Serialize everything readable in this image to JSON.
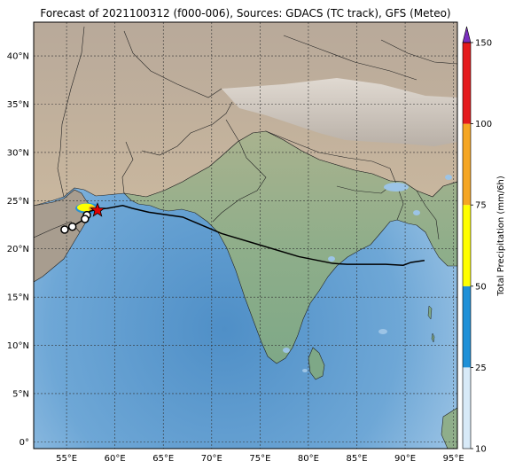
{
  "title": "Forecast of 2021100312 (f000-006), Sources: GDACS (TC track), GFS (Meteo)",
  "axes": {
    "lat_labels": [
      "40°N",
      "35°N",
      "30°N",
      "25°N",
      "20°N",
      "15°N",
      "10°N",
      "5°N",
      "0°"
    ],
    "lon_labels": [
      "55°E",
      "60°E",
      "65°E",
      "70°E",
      "75°E",
      "80°E",
      "85°E",
      "90°E",
      "95°E"
    ]
  },
  "colorbar": {
    "label": "Total Precipitation (mm/6h)",
    "tick_labels": [
      "10",
      "25",
      "50",
      "75",
      "100",
      "150"
    ],
    "colors": [
      "#d8eaf8",
      "#1e90d8",
      "#ffff00",
      "#f5a623",
      "#e41a1c",
      "#7b2fbe"
    ]
  },
  "track": {
    "line_color": "#000000",
    "marker_color": "#e00000",
    "points": [
      [
        92,
        18.8
      ],
      [
        90.6,
        18.6
      ],
      [
        89.8,
        18.3
      ],
      [
        88,
        18.4
      ],
      [
        86,
        18.4
      ],
      [
        84,
        18.4
      ],
      [
        82.5,
        18.5
      ],
      [
        79,
        19.2
      ],
      [
        75,
        20.4
      ],
      [
        71,
        21.6
      ],
      [
        67,
        23.3
      ],
      [
        63.5,
        23.8
      ],
      [
        61.8,
        24.2
      ],
      [
        60.8,
        24.5
      ],
      [
        59.2,
        24.2
      ],
      [
        58.2,
        24.1
      ]
    ],
    "current_position": [
      58.2,
      24.0
    ],
    "circle_positions": [
      [
        57.1,
        23.5
      ],
      [
        56.9,
        23.1
      ],
      [
        55.6,
        22.3
      ],
      [
        54.8,
        22.0
      ]
    ]
  }
}
